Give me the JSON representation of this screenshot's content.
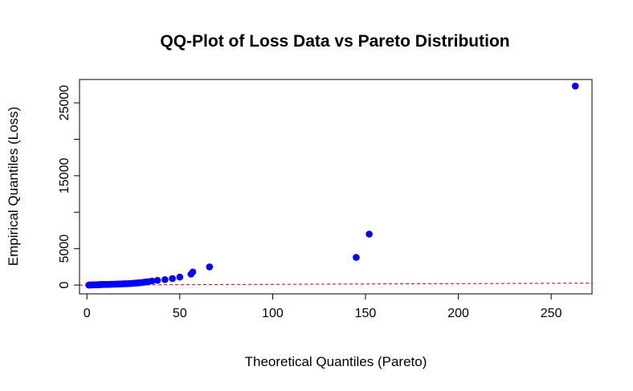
{
  "chart_data": {
    "type": "scatter",
    "title": "QQ-Plot of Loss Data vs Pareto Distribution",
    "xlabel": "Theoretical Quantiles (Pareto)",
    "ylabel": "Empirical Quantiles (Loss)",
    "xlim": [
      -4,
      272
    ],
    "ylim": [
      -1200,
      28200
    ],
    "x_ticks": [
      0,
      50,
      100,
      150,
      200,
      250
    ],
    "x_tick_labels": [
      "0",
      "50",
      "100",
      "150",
      "200",
      "250"
    ],
    "y_ticks": [
      0,
      5000,
      10000,
      15000,
      20000,
      25000
    ],
    "y_tick_labels": [
      "0",
      "5000",
      "",
      "15000",
      "",
      "25000"
    ],
    "point_color": "#0000ff",
    "reference_line": {
      "intercept": 0,
      "slope": 1,
      "color": "#cc0000",
      "style": "dashed"
    },
    "grid": false,
    "points": [
      [
        1,
        5
      ],
      [
        1.5,
        10
      ],
      [
        2,
        15
      ],
      [
        2.5,
        20
      ],
      [
        3,
        25
      ],
      [
        3.5,
        30
      ],
      [
        4,
        35
      ],
      [
        4.5,
        40
      ],
      [
        5,
        45
      ],
      [
        5.5,
        50
      ],
      [
        6,
        55
      ],
      [
        6.5,
        60
      ],
      [
        7,
        65
      ],
      [
        7.5,
        70
      ],
      [
        8,
        75
      ],
      [
        8.5,
        80
      ],
      [
        9,
        85
      ],
      [
        10,
        90
      ],
      [
        11,
        95
      ],
      [
        12,
        100
      ],
      [
        13,
        110
      ],
      [
        14,
        120
      ],
      [
        15,
        130
      ],
      [
        16,
        140
      ],
      [
        17,
        150
      ],
      [
        18,
        160
      ],
      [
        19,
        170
      ],
      [
        20,
        180
      ],
      [
        21,
        190
      ],
      [
        22,
        200
      ],
      [
        23,
        215
      ],
      [
        24,
        230
      ],
      [
        25,
        250
      ],
      [
        26,
        270
      ],
      [
        27,
        290
      ],
      [
        28,
        310
      ],
      [
        29,
        340
      ],
      [
        30,
        370
      ],
      [
        31,
        400
      ],
      [
        32,
        430
      ],
      [
        33,
        470
      ],
      [
        35,
        550
      ],
      [
        38,
        650
      ],
      [
        42,
        750
      ],
      [
        46,
        900
      ],
      [
        50,
        1100
      ],
      [
        56,
        1500
      ],
      [
        57,
        1800
      ],
      [
        66,
        2500
      ],
      [
        145,
        3800
      ],
      [
        152,
        7000
      ],
      [
        263,
        27300
      ]
    ]
  }
}
